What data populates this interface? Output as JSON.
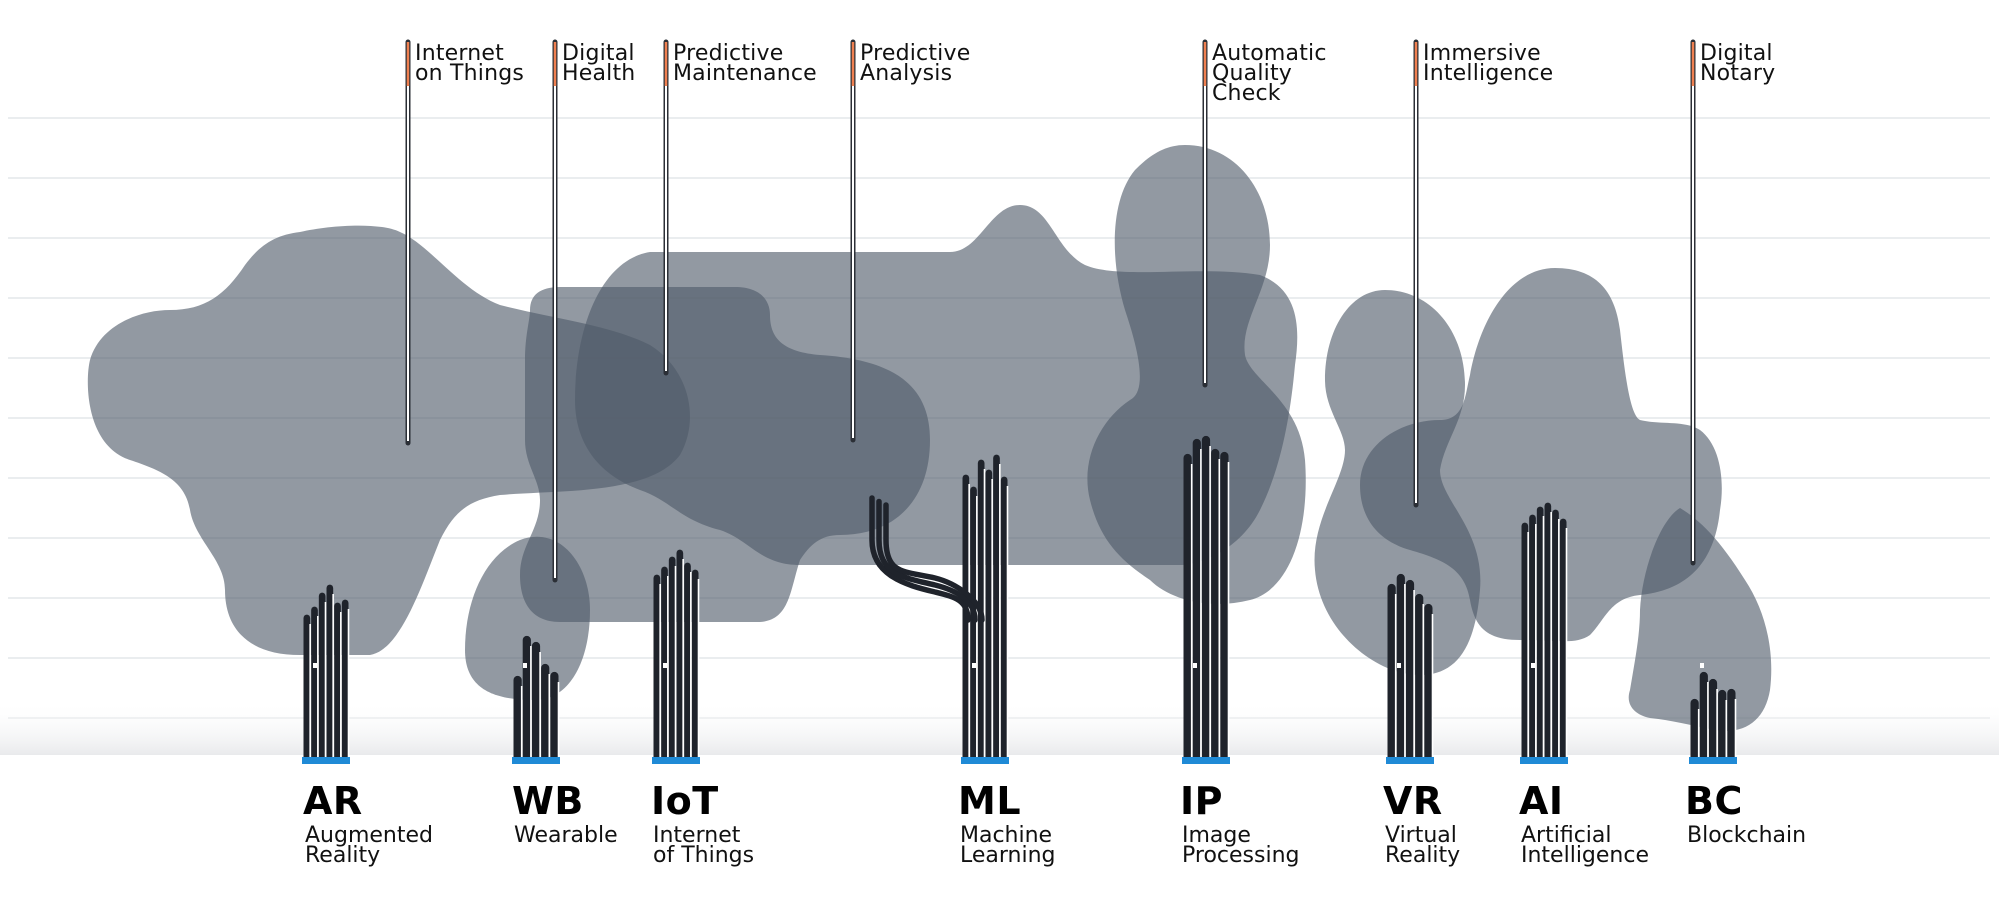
{
  "callouts": [
    {
      "id": "iot-app",
      "lines": [
        "Internet",
        "on Things"
      ]
    },
    {
      "id": "digital-health",
      "lines": [
        "Digital",
        "Health"
      ]
    },
    {
      "id": "predictive-maintenance",
      "lines": [
        "Predictive",
        "Maintenance"
      ]
    },
    {
      "id": "predictive-analysis",
      "lines": [
        "Predictive",
        "Analysis"
      ]
    },
    {
      "id": "automatic-quality-check",
      "lines": [
        "Automatic",
        "Quality",
        "Check"
      ]
    },
    {
      "id": "immersive-intelligence",
      "lines": [
        "Immersive",
        "Intelligence"
      ]
    },
    {
      "id": "digital-notary",
      "lines": [
        "Digital",
        "Notary"
      ]
    }
  ],
  "technologies": [
    {
      "id": "ar",
      "abbr": "AR",
      "lines": [
        "Augmented",
        "Reality"
      ]
    },
    {
      "id": "wb",
      "abbr": "WB",
      "lines": [
        "Wearable"
      ]
    },
    {
      "id": "iot",
      "abbr": "IoT",
      "lines": [
        "Internet",
        "of Things"
      ]
    },
    {
      "id": "ml",
      "abbr": "ML",
      "lines": [
        "Machine",
        "Learning"
      ]
    },
    {
      "id": "ip",
      "abbr": "IP",
      "lines": [
        "Image",
        "Processing"
      ]
    },
    {
      "id": "vr",
      "abbr": "VR",
      "lines": [
        "Virtual",
        "Reality"
      ]
    },
    {
      "id": "ai",
      "abbr": "AI",
      "lines": [
        "Artificial",
        "Intelligence"
      ]
    },
    {
      "id": "bc",
      "abbr": "BC",
      "lines": [
        "Blockchain"
      ]
    }
  ],
  "colors": {
    "canopy": "#4f5b69",
    "trunk": "#1f232b",
    "base": "#1f8ad6",
    "accent_tick": "#f08050",
    "grid": "#e4e7ea"
  }
}
